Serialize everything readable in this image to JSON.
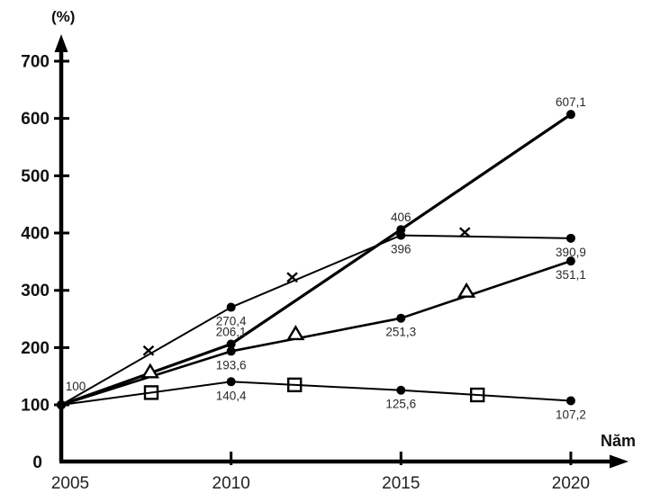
{
  "chart_data": {
    "type": "line",
    "title": "",
    "y_unit_label": "(%)",
    "xlabel": "Năm",
    "ylabel": "(%)",
    "x": [
      2005,
      2010,
      2015,
      2020
    ],
    "x_tick_labels": [
      "2005",
      "2010",
      "2015",
      "2020"
    ],
    "y_ticks": [
      0,
      100,
      200,
      300,
      400,
      500,
      600,
      700
    ],
    "ylim": [
      0,
      760
    ],
    "xlim": [
      2005,
      2021.5
    ],
    "grid": false,
    "legend": "none",
    "start_label": "100",
    "series": [
      {
        "name": "line-bold-dot",
        "marker": "dot",
        "mid_marker": "none",
        "mid_marker_x": [],
        "values": [
          100,
          206.1,
          406,
          607.1
        ],
        "point_labels": [
          "",
          "206,1",
          "406",
          "607,1"
        ],
        "label_pos": [
          "",
          "above",
          "above",
          "above"
        ],
        "stroke_width": 3.2
      },
      {
        "name": "line-x-marker",
        "marker": "dot",
        "mid_marker": "x",
        "mid_marker_x": [
          2007.57,
          2011.8,
          2016.88
        ],
        "values": [
          100,
          270.4,
          396,
          390.9
        ],
        "point_labels": [
          "",
          "270,4",
          "396",
          "390,9"
        ],
        "label_pos": [
          "",
          "below",
          "below",
          "below"
        ],
        "stroke_width": 2
      },
      {
        "name": "line-triangle-marker",
        "marker": "dot",
        "mid_marker": "triangle",
        "mid_marker_x": [
          2007.62,
          2011.9,
          2016.93
        ],
        "values": [
          100,
          193.6,
          251.3,
          351.1
        ],
        "point_labels": [
          "",
          "193,6",
          "251,3",
          "351,1"
        ],
        "label_pos": [
          "",
          "below",
          "below",
          "below"
        ],
        "stroke_width": 2.6
      },
      {
        "name": "line-square-marker",
        "marker": "dot",
        "mid_marker": "square",
        "mid_marker_x": [
          2007.65,
          2011.87,
          2017.25
        ],
        "values": [
          100,
          140.4,
          125.6,
          107.2
        ],
        "point_labels": [
          "",
          "140,4",
          "125,6",
          "107,2"
        ],
        "label_pos": [
          "",
          "below",
          "below",
          "below"
        ],
        "stroke_width": 2
      }
    ],
    "colors": {
      "line": "#000000",
      "axis": "#000000",
      "tick_text": "#111111",
      "data_label_text": "#2a2a2a",
      "background": "#ffffff"
    }
  }
}
